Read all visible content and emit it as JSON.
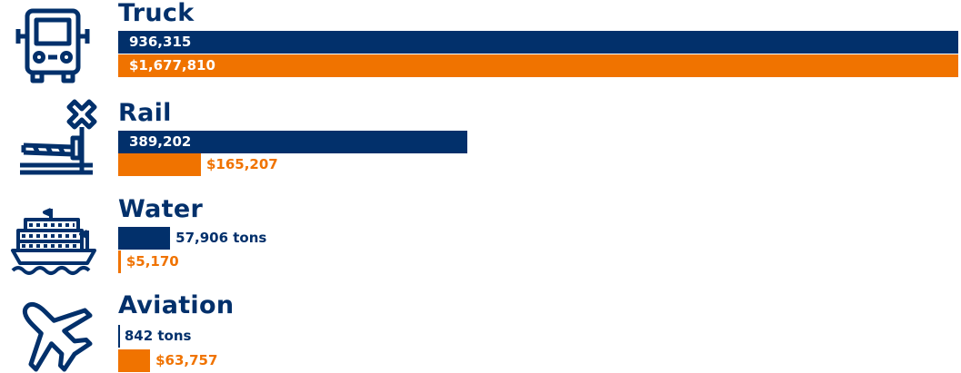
{
  "colors": {
    "tons": "#02306b",
    "value": "#f07300",
    "text_dark": "#02306b",
    "text_light": "#ffffff"
  },
  "chart_data": {
    "type": "bar",
    "orientation": "horizontal",
    "categories": [
      "Truck",
      "Rail",
      "Water",
      "Aviation"
    ],
    "icons": [
      "truck-icon",
      "railroad-crossing-icon",
      "ship-icon",
      "airplane-icon"
    ],
    "series": [
      {
        "values": [
          936315,
          389202,
          57906,
          842
        ],
        "labels": [
          "936,315",
          "389,202",
          "57,906 tons",
          "842 tons"
        ]
      },
      {
        "values": [
          1677810,
          165207,
          5170,
          63757
        ],
        "labels": [
          "$1,677,810",
          "$165,207",
          "$5,170",
          "$63,757"
        ]
      }
    ]
  }
}
